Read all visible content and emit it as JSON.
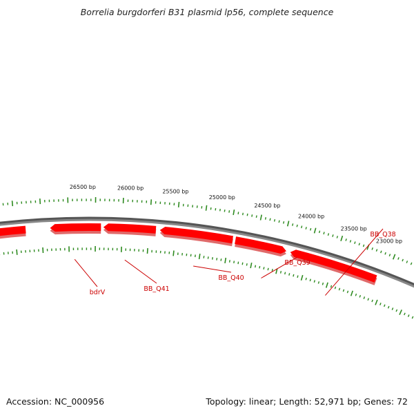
{
  "title": "Borrelia burgdorferi B31 plasmid lp56, complete sequence",
  "footer": {
    "accession": "Accession: NC_000956",
    "summary": "Topology: linear; Length: 52,971 bp; Genes: 72"
  },
  "colors": {
    "backbone": "#888888",
    "gene_fill": "#ff0000",
    "gene_shadow": "#e06a6a",
    "gene_label": "#cc0000",
    "tick": "#2d8a1f",
    "leader": "#cc0000"
  },
  "scale_labels": [
    "23000 bp",
    "23500 bp",
    "24000 bp",
    "24500 bp",
    "25000 bp",
    "25500 bp",
    "26000 bp",
    "26500 bp"
  ],
  "gene_labels": [
    "BB_Q38",
    "BB_Q39",
    "BB_Q40",
    "BB_Q41",
    "bdrV"
  ]
}
